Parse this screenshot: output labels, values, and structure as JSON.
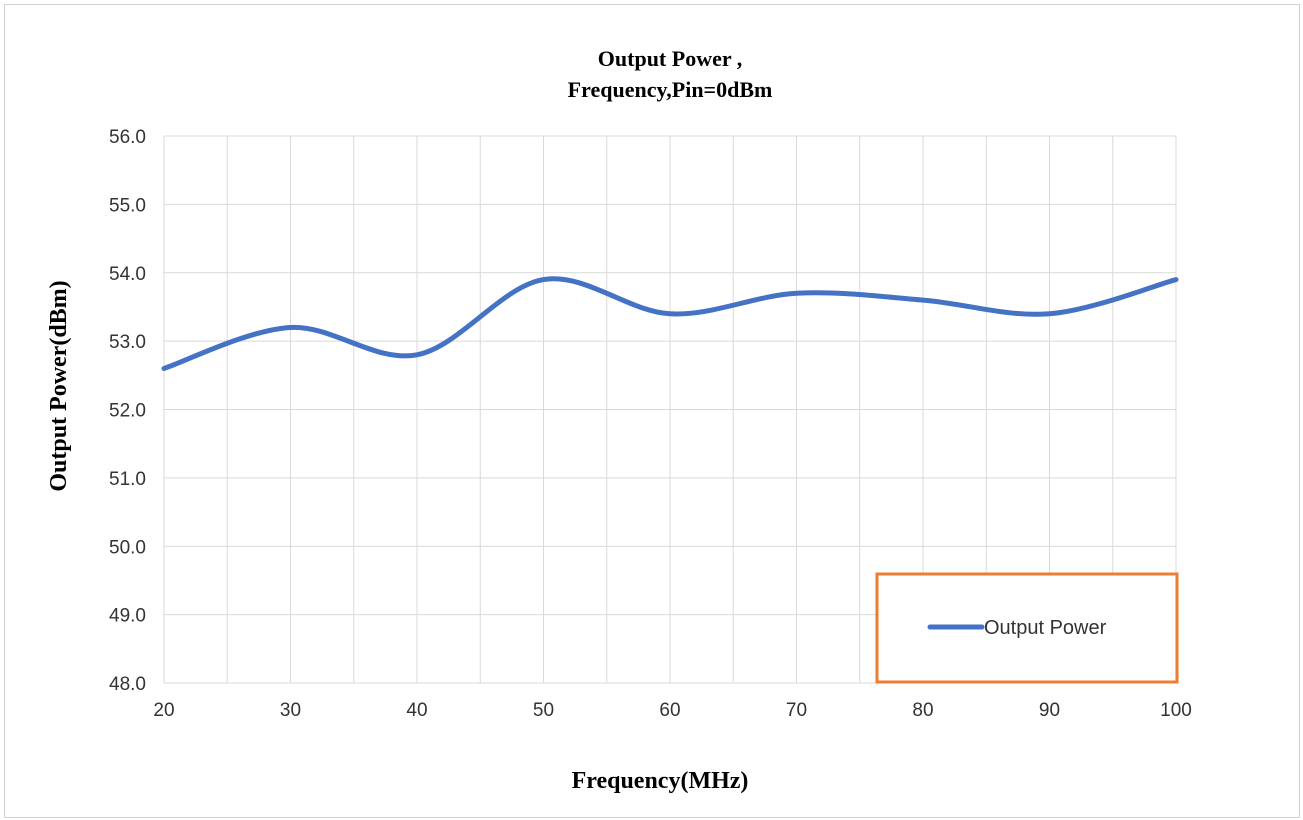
{
  "chart_data": {
    "type": "line",
    "title_line1": "Output Power ,",
    "title_line2": "Frequency,Pin=0dBm",
    "xlabel": "Frequency(MHz)",
    "ylabel": "Output Power(dBm)",
    "xlim": [
      20,
      100
    ],
    "ylim": [
      48.0,
      56.0
    ],
    "x_ticks": [
      "20",
      "30",
      "40",
      "50",
      "60",
      "70",
      "80",
      "90",
      "100"
    ],
    "y_ticks": [
      "48.0",
      "49.0",
      "50.0",
      "51.0",
      "52.0",
      "53.0",
      "54.0",
      "55.0",
      "56.0"
    ],
    "grid": true,
    "legend_position": "bottom-right",
    "series": [
      {
        "name": "Output Power",
        "color": "#4472C4",
        "x": [
          20,
          30,
          40,
          50,
          60,
          70,
          80,
          90,
          100
        ],
        "y": [
          52.6,
          53.2,
          52.8,
          53.9,
          53.4,
          53.7,
          53.6,
          53.4,
          53.9
        ]
      }
    ],
    "legend_border_color": "#ED7D31"
  }
}
